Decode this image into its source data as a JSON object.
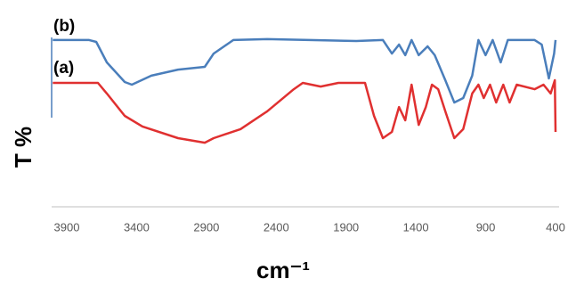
{
  "chart_data": {
    "type": "line",
    "x_label": "cm⁻¹",
    "y_label": "T %",
    "annotations": [
      "(b)",
      "(a)"
    ],
    "xlim": [
      4000,
      400
    ],
    "xticks": [
      3900,
      3400,
      2900,
      2400,
      1900,
      1400,
      900,
      400
    ],
    "ylim": [
      0,
      100
    ],
    "series": [
      {
        "name": "(b)",
        "color": "#4a7ebb",
        "x": [
          4000,
          3740,
          3689,
          3613,
          3485,
          3434,
          3294,
          3103,
          2912,
          2848,
          2707,
          2465,
          1827,
          1636,
          1572,
          1521,
          1476,
          1431,
          1380,
          1316,
          1265,
          1189,
          1125,
          1061,
          997,
          952,
          901,
          850,
          793,
          742,
          550,
          499,
          448,
          410,
          400
        ],
        "values": [
          92.6,
          92.6,
          91.6,
          80.2,
          69.3,
          67.8,
          72.8,
          76.2,
          77.7,
          85.1,
          92.6,
          93.1,
          92.1,
          92.6,
          85.1,
          90.1,
          84.2,
          92.6,
          84.2,
          89.1,
          84.2,
          70.3,
          57.9,
          60.4,
          72.8,
          92.6,
          84.2,
          92.6,
          80.2,
          92.6,
          92.6,
          90.1,
          71.3,
          85.1,
          92.6
        ]
      },
      {
        "name": "(a)",
        "color": "#e03030",
        "x": [
          4000,
          3677,
          3613,
          3485,
          3358,
          3103,
          2912,
          2848,
          2656,
          2465,
          2274,
          2210,
          2082,
          1955,
          1764,
          1700,
          1636,
          1572,
          1521,
          1476,
          1431,
          1380,
          1329,
          1285,
          1240,
          1189,
          1125,
          1061,
          997,
          952,
          914,
          869,
          825,
          774,
          729,
          678,
          550,
          486,
          435,
          405,
          400
        ],
        "values": [
          68.8,
          68.8,
          62.9,
          50.5,
          44.6,
          38.1,
          35.6,
          38.1,
          43.1,
          53.0,
          65.3,
          68.8,
          66.8,
          68.8,
          68.8,
          50.5,
          38.1,
          41.6,
          55.4,
          48.0,
          67.8,
          45.5,
          55.4,
          67.8,
          65.3,
          53.0,
          38.1,
          43.1,
          62.9,
          67.8,
          60.4,
          67.8,
          57.9,
          67.8,
          57.9,
          67.8,
          65.3,
          67.8,
          62.9,
          70.3,
          41.6
        ]
      }
    ]
  }
}
